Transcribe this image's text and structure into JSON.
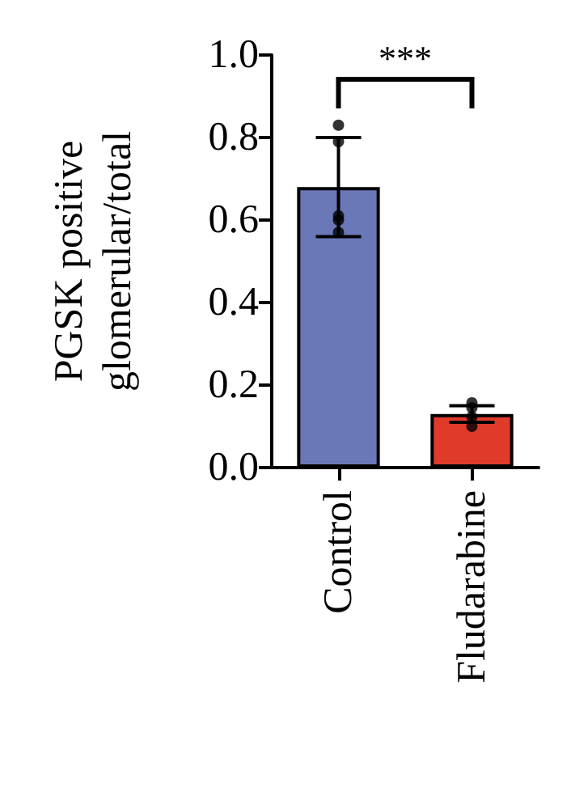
{
  "chart_data": {
    "type": "bar",
    "ylabel": "PGSK positive\nglomerular/total",
    "categories": [
      "Control",
      "Fludarabine"
    ],
    "series": [
      {
        "colors": [
          "#6a78b8",
          "#e03a2a"
        ],
        "values": [
          0.68,
          0.13
        ],
        "errors": [
          0.12,
          0.02
        ]
      },
      {
        "type": "scatter",
        "color": "#000000",
        "x": [
          "Control",
          "Control",
          "Control",
          "Control",
          "Control",
          "Fludarabine",
          "Fludarabine",
          "Fludarabine",
          "Fludarabine"
        ],
        "values": [
          0.83,
          0.79,
          0.61,
          0.6,
          0.57,
          0.145,
          0.157,
          0.123,
          0.1
        ]
      }
    ],
    "ylim": [
      0,
      1.0
    ],
    "yticks": [
      {
        "value": 0,
        "label": "0.0"
      },
      {
        "value": 0.2,
        "label": "0.2"
      },
      {
        "value": 0.4,
        "label": "0.4"
      },
      {
        "value": 0.6,
        "label": "0.6"
      },
      {
        "value": 0.8,
        "label": "0.8"
      },
      {
        "value": 1.0,
        "label": "1.0"
      }
    ],
    "annotations": [
      "***"
    ],
    "grid": false,
    "marker": "circle"
  }
}
